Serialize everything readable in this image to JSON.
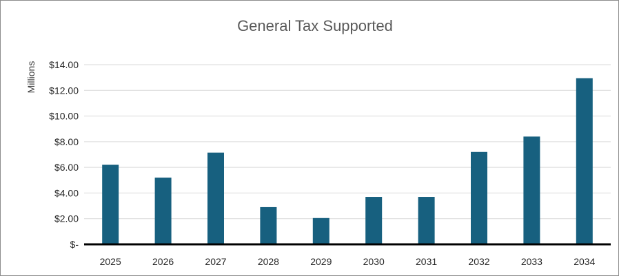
{
  "chart_data": {
    "type": "bar",
    "title": "General Tax Supported",
    "ylabel": "Millions",
    "xlabel": "",
    "categories": [
      "2025",
      "2026",
      "2027",
      "2028",
      "2029",
      "2030",
      "2031",
      "2032",
      "2033",
      "2034"
    ],
    "values": [
      6.2,
      5.2,
      7.15,
      2.9,
      2.05,
      3.7,
      3.7,
      7.2,
      8.4,
      12.95
    ],
    "ylim": [
      0,
      14
    ],
    "yticks": [
      {
        "value": 0,
        "label": "$-"
      },
      {
        "value": 2,
        "label": "$2.00"
      },
      {
        "value": 4,
        "label": "$4.00"
      },
      {
        "value": 6,
        "label": "$6.00"
      },
      {
        "value": 8,
        "label": "$8.00"
      },
      {
        "value": 10,
        "label": "$10.00"
      },
      {
        "value": 12,
        "label": "$12.00"
      },
      {
        "value": 14,
        "label": "$14.00"
      }
    ],
    "grid": true,
    "bar_color": "#17607f",
    "grid_color": "#d9d9d9",
    "axis_color": "#000000"
  }
}
